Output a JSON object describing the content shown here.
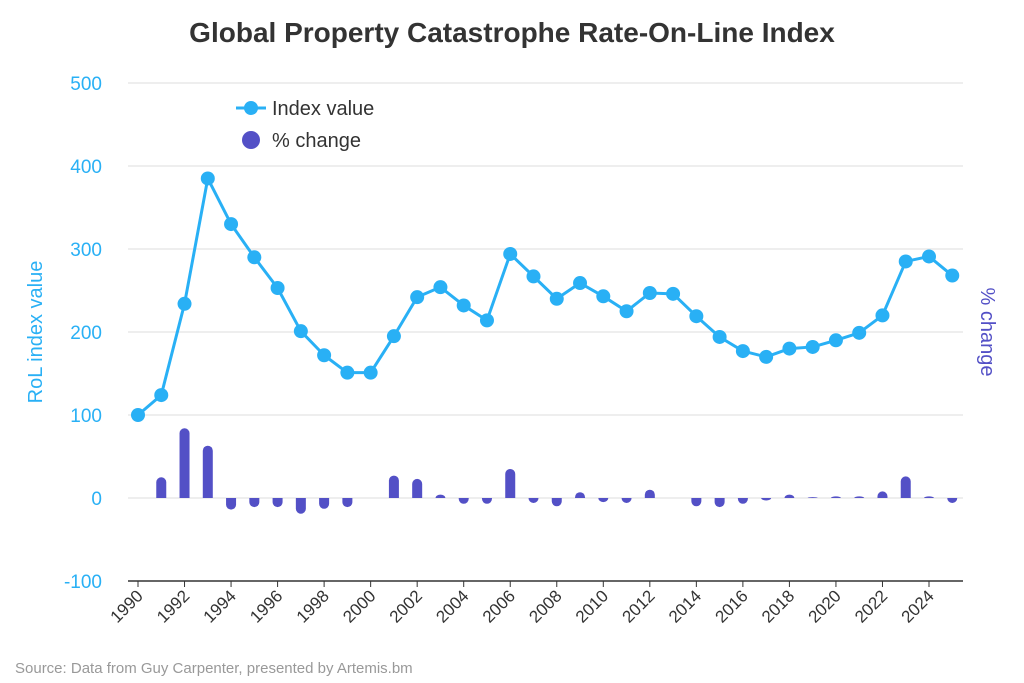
{
  "chart_data": {
    "type": "line+bar",
    "title": "Global Property Catastrophe Rate-On-Line Index",
    "ylabel_left": "RoL index value",
    "ylabel_right": "% change",
    "ylim": [
      -100,
      500
    ],
    "yticks": [
      500,
      400,
      300,
      200,
      100,
      0,
      -100
    ],
    "xticks": [
      1990,
      1992,
      1994,
      1996,
      1998,
      2000,
      2002,
      2004,
      2006,
      2008,
      2010,
      2012,
      2014,
      2016,
      2018,
      2020,
      2022,
      2024
    ],
    "x": [
      1990,
      1991,
      1992,
      1993,
      1994,
      1995,
      1996,
      1997,
      1998,
      1999,
      2000,
      2001,
      2002,
      2003,
      2004,
      2005,
      2006,
      2007,
      2008,
      2009,
      2010,
      2011,
      2012,
      2013,
      2014,
      2015,
      2016,
      2017,
      2018,
      2019,
      2020,
      2021,
      2022,
      2023,
      2024,
      2025
    ],
    "series": [
      {
        "name": "Index value",
        "type": "line",
        "color": "#29b0f5",
        "values": [
          100,
          124,
          234,
          385,
          330,
          290,
          253,
          201,
          172,
          151,
          151,
          195,
          242,
          254,
          232,
          214,
          294,
          267,
          240,
          259,
          243,
          225,
          247,
          246,
          219,
          194,
          177,
          170,
          180,
          182,
          190,
          199,
          220,
          285,
          291,
          268
        ]
      },
      {
        "name": "% change",
        "type": "bar",
        "color": "#5350c6",
        "values": [
          null,
          25,
          84,
          63,
          -14,
          -11,
          -11,
          -19,
          -13,
          -11,
          0,
          27,
          23,
          4,
          -7,
          -7,
          35,
          -6,
          -10,
          7,
          -5,
          -6,
          10,
          0,
          -10,
          -11,
          -7,
          -3,
          4,
          1,
          2,
          2,
          8,
          26,
          2,
          -6
        ]
      }
    ],
    "legend": "top-left",
    "grid": true
  },
  "source": "Source: Data from Guy Carpenter, presented by Artemis.bm"
}
